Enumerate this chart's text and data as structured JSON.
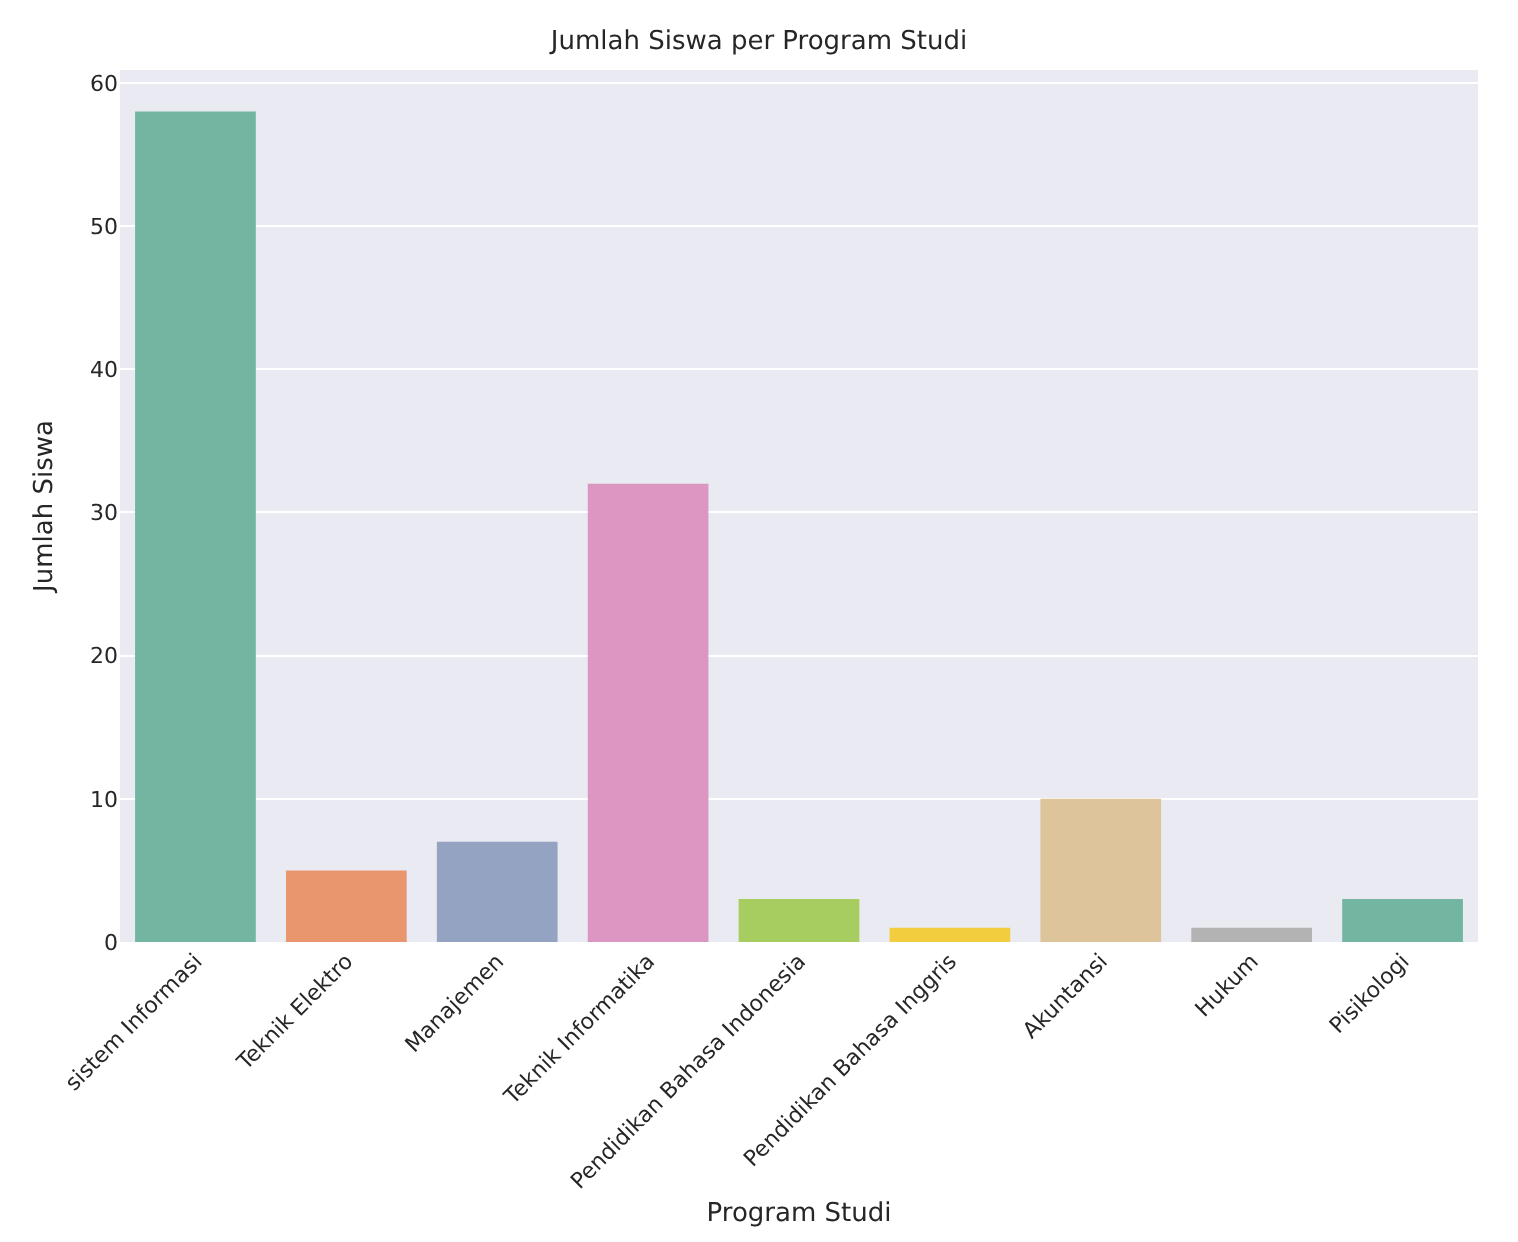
{
  "chart_data": {
    "type": "bar",
    "title": "Jumlah Siswa per Program Studi",
    "xlabel": "Program Studi",
    "ylabel": "Jumlah Siswa",
    "categories": [
      "sistem Informasi",
      "Teknik Elektro",
      "Manajemen",
      "Teknik Informatika",
      "Pendidikan Bahasa Indonesia",
      "Pendidikan Bahasa Inggris",
      "Akuntansi",
      "Hukum",
      "Pisikologi"
    ],
    "values": [
      58,
      5,
      7,
      32,
      3,
      1,
      10,
      1,
      3
    ],
    "colors": [
      "#72b6a1",
      "#e9966f",
      "#95a3c3",
      "#dc96c2",
      "#a7cc5f",
      "#f2cd3e",
      "#dec49a",
      "#b3b3b3",
      "#72b6a1"
    ],
    "ylim": [
      0,
      60.9
    ],
    "yticks": [
      0,
      10,
      20,
      30,
      40,
      50,
      60
    ],
    "grid": "y",
    "legend": false
  }
}
